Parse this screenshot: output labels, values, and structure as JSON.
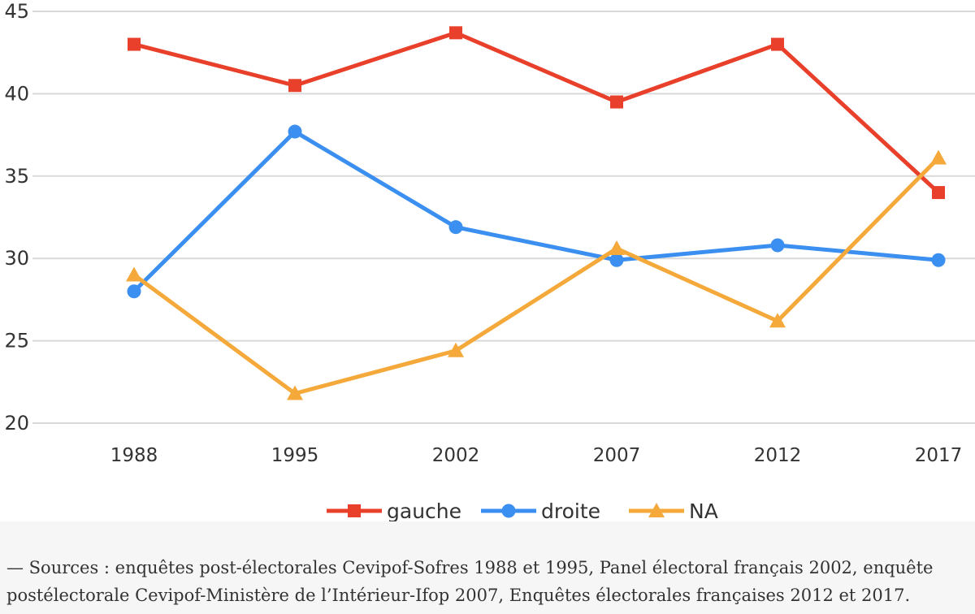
{
  "chart_data": {
    "type": "line",
    "categories": [
      "1988",
      "1995",
      "2002",
      "2007",
      "2012",
      "2017"
    ],
    "series": [
      {
        "name": "gauche",
        "color": "#e8402a",
        "marker": "square",
        "values": [
          43,
          40.5,
          43.7,
          39.5,
          43,
          34
        ]
      },
      {
        "name": "droite",
        "color": "#3a8ff0",
        "marker": "circle",
        "values": [
          28,
          37.7,
          31.9,
          29.9,
          30.8,
          29.9
        ]
      },
      {
        "name": "NA",
        "color": "#f4a93a",
        "marker": "triangle",
        "values": [
          29,
          21.8,
          24.4,
          30.6,
          26.2,
          36.1
        ]
      }
    ],
    "yticks": [
      "20",
      "25",
      "30",
      "35",
      "40",
      "45"
    ],
    "ylim": [
      20,
      45
    ],
    "grid": true,
    "legend_position": "bottom"
  },
  "caption": "— Sources : enquêtes post-électorales Cevipof-Sofres 1988 et 1995, Panel électoral français 2002, enquête postélectorale Cevipof-Ministère de l’Intérieur-Ifop 2007, Enquêtes électorales françaises 2012 et 2017."
}
